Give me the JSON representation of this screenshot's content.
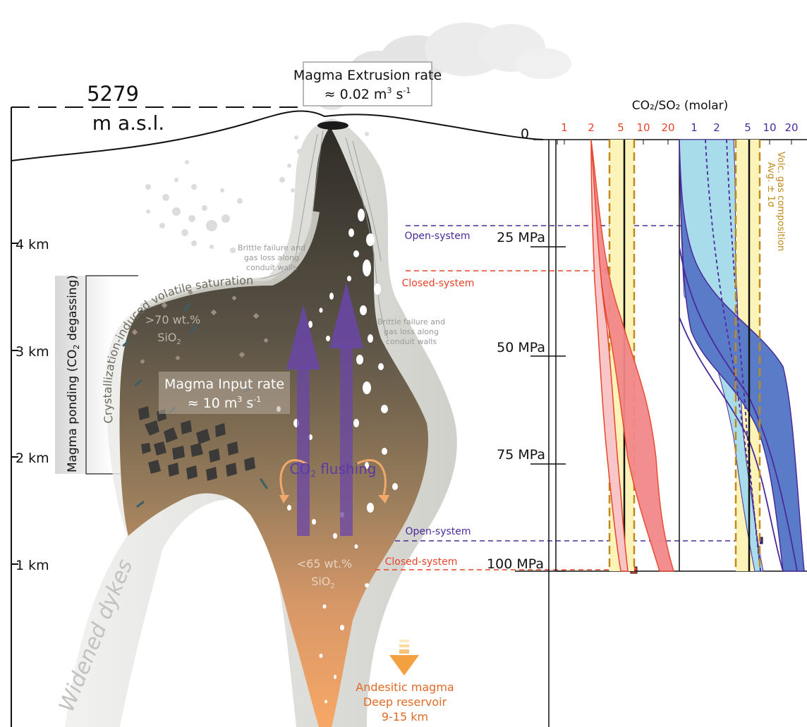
{
  "surface": {
    "elevation_value": "5279",
    "elevation_unit": "m a.s.l.",
    "extrusion_title": "Magma Extrusion rate",
    "extrusion_rate": "≈ 0.02 m",
    "extrusion_rate_sup": "3",
    "extrusion_rate_unit": " s",
    "extrusion_rate_unit_sup": "-1"
  },
  "depth_axis": {
    "ticks": [
      "4 km",
      "3 km",
      "2 km",
      "1 km"
    ]
  },
  "pressure_axis": {
    "ticks": [
      "25 MPa",
      "50 MPa",
      "75 MPa",
      "100 MPa"
    ]
  },
  "cross_section": {
    "ponding_label": "Magma ponding (CO",
    "ponding_sub": "2",
    "ponding_label_end": " degassing)",
    "saturation_label": "Crystallization-induced volatile saturation",
    "brittle_label_1_line1": "Brittle failure and",
    "brittle_label_1_line2": "gas loss along",
    "brittle_label_1_line3": "conduit walls",
    "brittle_label_2_line1": "Brittle failure and",
    "brittle_label_2_line2": "gas loss along",
    "brittle_label_2_line3": "conduit walls",
    "silica_high_1": ">70 wt.%",
    "silica_high_2": "SiO",
    "silica_high_sub": "2",
    "input_title": "Magma Input rate",
    "input_rate": "≈ 10 m",
    "input_rate_sup": "3",
    "input_rate_unit": " s",
    "input_rate_unit_sup": "-1",
    "flushing_label": "CO",
    "flushing_sub": "2",
    "flushing_label_end": " flushing",
    "silica_low_1": "<65 wt.%",
    "silica_low_2": "SiO",
    "silica_low_sub": "2",
    "dykes_label": "Widened dykes",
    "reservoir_line1": "Andesitic magma",
    "reservoir_line2": "Deep reservoir",
    "reservoir_line3": "9-15 km"
  },
  "system_labels": {
    "open_upper": "Open-system",
    "closed_upper": "Closed-system",
    "open_lower": "Open-system",
    "closed_lower": "Closed-system"
  },
  "ratio_panel": {
    "title": "CO₂/SO₂ (molar)",
    "zero_label": "0",
    "red_ticks": [
      "1",
      "2",
      "5",
      "10",
      "20"
    ],
    "blue_ticks": [
      "1",
      "2",
      "5",
      "10",
      "20"
    ],
    "volc_label_line1": "Volc. gas composition",
    "volc_label_line2": "Avg. ± 1σ"
  },
  "colors": {
    "closed_system": "#e8442a",
    "open_system": "#4a2a9a",
    "gas_avg": "#c08a1a",
    "gas_band": "#fbf3b8",
    "magma_dark": "#3d3a33",
    "magma_warm": "#f4a66a",
    "blue_fill": "#5a7cc8",
    "light_blue_fill": "#a8dceb",
    "red_fill": "#f2888a",
    "pink_fill": "#f8c6c8"
  }
}
